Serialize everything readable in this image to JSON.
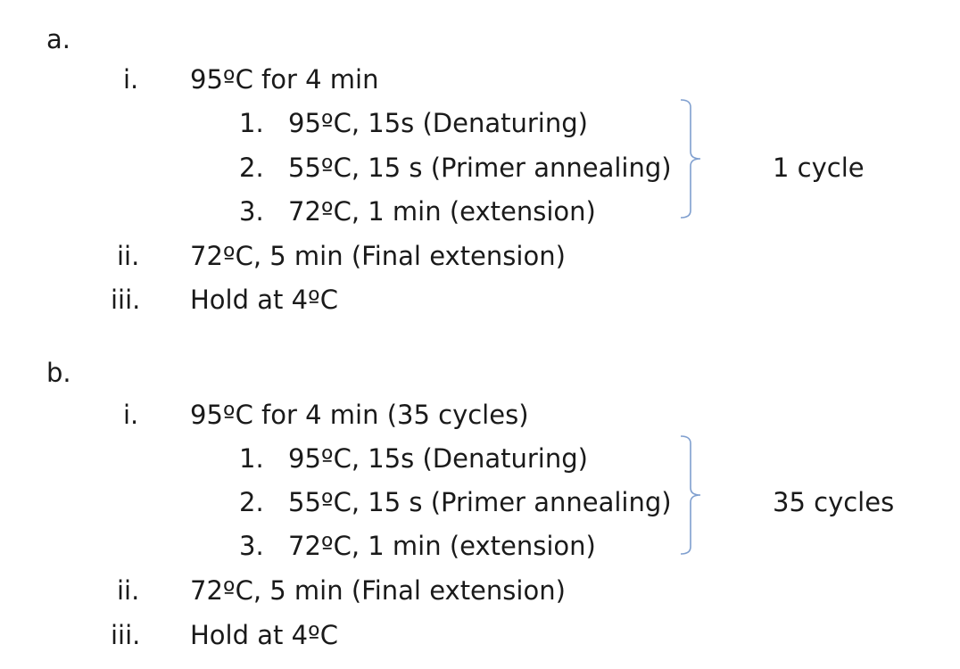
{
  "sections": [
    {
      "label": "a.",
      "items": [
        {
          "num": "i.",
          "text": "95ºC for 4 min"
        },
        {
          "num": "ii.",
          "text": "72ºC, 5 min (Final extension)"
        },
        {
          "num": "iii.",
          "text": "Hold at 4ºC"
        }
      ],
      "substeps": [
        {
          "num": "1.",
          "text": "95ºC, 15s (Denaturing)"
        },
        {
          "num": "2.",
          "text": "55ºC, 15 s (Primer annealing)"
        },
        {
          "num": "3.",
          "text": "72ºC, 1 min (extension)"
        }
      ],
      "cycle_note": "1 cycle"
    },
    {
      "label": "b.",
      "items": [
        {
          "num": "i.",
          "text": "95ºC for 4 min (35 cycles)"
        },
        {
          "num": "ii.",
          "text": "72ºC, 5 min (Final extension)"
        },
        {
          "num": "iii.",
          "text": "Hold at 4ºC"
        }
      ],
      "substeps": [
        {
          "num": "1.",
          "text": "95ºC, 15s (Denaturing)"
        },
        {
          "num": "2.",
          "text": "55ºC, 15 s (Primer annealing)"
        },
        {
          "num": "3.",
          "text": "72ºC, 1 min (extension)"
        }
      ],
      "cycle_note": "35 cycles"
    }
  ],
  "colors": {
    "text": "#1a1a1a",
    "brace": "#7f9fcf"
  }
}
